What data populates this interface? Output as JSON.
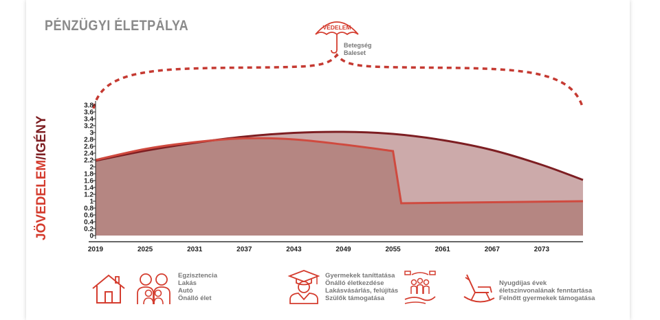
{
  "title": "PÉNZÜGYI ÉLETPÁLYA",
  "ylabel": {
    "part1": "JÖVEDELEM",
    "sep": "/",
    "part2": "IGÉNY"
  },
  "protection": {
    "label": "VÉDELEM",
    "items": [
      "Betegség",
      "Baleset"
    ]
  },
  "colors": {
    "income": "#b58682",
    "need": "#ccaaaa",
    "income_line": "#cf4a3f",
    "need_line": "#7d1e22",
    "accent": "#d43c2e"
  },
  "chart_data": {
    "type": "area",
    "xlim": [
      2019,
      2078
    ],
    "ylim": [
      0,
      3.8
    ],
    "yticks": [
      "0",
      "0.2",
      "0.4",
      "0.6",
      "0.8",
      "1",
      "1.2",
      "1.4",
      "1.6",
      "1.8",
      "2",
      "2.2",
      "2.4",
      "2.6",
      "2.8",
      "3",
      "3.2",
      "3.4",
      "3.6",
      "3.8"
    ],
    "xticks": [
      "2019",
      "2025",
      "2031",
      "2037",
      "2043",
      "2049",
      "2055",
      "2061",
      "2067",
      "2073"
    ],
    "series": [
      {
        "values": [
          [
            2019,
            2.18
          ],
          [
            2025,
            2.47
          ],
          [
            2031,
            2.7
          ],
          [
            2037,
            2.88
          ],
          [
            2043,
            2.99
          ],
          [
            2049,
            3.02
          ],
          [
            2055,
            2.96
          ],
          [
            2061,
            2.78
          ],
          [
            2067,
            2.49
          ],
          [
            2073,
            2.06
          ],
          [
            2078,
            1.62
          ]
        ]
      },
      {
        "values": [
          [
            2019,
            2.2
          ],
          [
            2025,
            2.52
          ],
          [
            2031,
            2.72
          ],
          [
            2037,
            2.83
          ],
          [
            2043,
            2.8
          ],
          [
            2049,
            2.65
          ],
          [
            2055,
            2.46
          ],
          [
            2056,
            0.94
          ],
          [
            2078,
            1.0
          ]
        ]
      }
    ]
  },
  "legend": [
    {
      "icons": [
        "house-icon",
        "family-icon"
      ],
      "lines": [
        "Egzisztencia",
        "Lakás",
        "Autó",
        "Önálló élet"
      ]
    },
    {
      "icons": [
        "graduate-icon"
      ],
      "lines": [
        "Gyermekek taníttatása",
        "Önálló életkezdése",
        "Lakásvásárlás, felújítás",
        "Szülők támogatása"
      ]
    },
    {
      "icons": [
        "family-care-icon"
      ],
      "lines": []
    },
    {
      "icons": [
        "rocking-chair-icon"
      ],
      "lines": [
        "Nyugdíjas évek",
        "életszínvonalának fenntartása",
        "Felnőtt gyermekek támogatása"
      ]
    }
  ]
}
